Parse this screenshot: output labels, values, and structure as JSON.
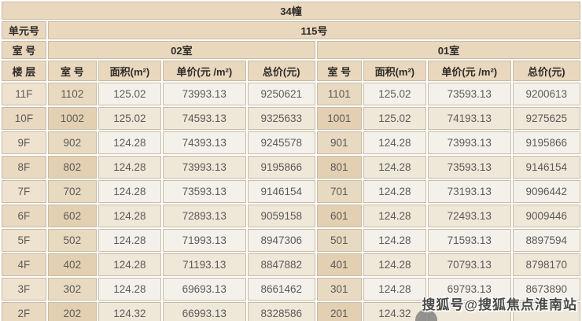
{
  "header": {
    "building": "34幢",
    "unit_label": "单元号",
    "unit_value": "115号",
    "room_label": "室 号",
    "room_groups": [
      "02室",
      "01室"
    ]
  },
  "columns": [
    "楼 层",
    "室 号",
    "面积(m²)",
    "单价(元 /m²)",
    "总价(元)",
    "室 号",
    "面积(m²)",
    "单价(元 /m²)",
    "总价(元)"
  ],
  "rows": [
    [
      "11F",
      "1102",
      "125.02",
      "73993.13",
      "9250621",
      "1101",
      "125.02",
      "73593.13",
      "9200613"
    ],
    [
      "10F",
      "1002",
      "125.02",
      "74593.13",
      "9325633",
      "1001",
      "125.02",
      "74193.13",
      "9275625"
    ],
    [
      "9F",
      "902",
      "124.28",
      "74393.13",
      "9245578",
      "901",
      "124.28",
      "73993.13",
      "9195866"
    ],
    [
      "8F",
      "802",
      "124.28",
      "73993.13",
      "9195866",
      "801",
      "124.28",
      "73593.13",
      "9146154"
    ],
    [
      "7F",
      "702",
      "124.28",
      "73593.13",
      "9146154",
      "701",
      "124.28",
      "73193.13",
      "9096442"
    ],
    [
      "6F",
      "602",
      "124.28",
      "72893.13",
      "9059158",
      "601",
      "124.28",
      "72493.13",
      "9009446"
    ],
    [
      "5F",
      "502",
      "124.28",
      "71993.13",
      "8947306",
      "501",
      "124.28",
      "71593.13",
      "8897594"
    ],
    [
      "4F",
      "402",
      "124.28",
      "71193.13",
      "8847882",
      "401",
      "124.28",
      "70793.13",
      "8798170"
    ],
    [
      "3F",
      "302",
      "124.28",
      "69693.13",
      "8661462",
      "301",
      "124.28",
      "69793.13",
      "8673890"
    ],
    [
      "2F",
      "202",
      "124.32",
      "66993.13",
      "8328586",
      "201",
      "124.32",
      "",
      ""
    ]
  ],
  "watermark": {
    "text": "搜狐号@搜狐焦点淮南站"
  },
  "colors": {
    "header_bg": "#e9d7be",
    "floor_bg": "#efe3cf",
    "floor_bg_alt": "#ead9c1",
    "room_bg": "#e8d9c1",
    "room_bg_alt": "#e3d0b2",
    "num_bg": "#f4f1eb",
    "num_bg_alt": "#efe7d8",
    "grid_line": "#c9bba4",
    "header_text": "#2e2c29",
    "data_text": "#5d5b58"
  }
}
